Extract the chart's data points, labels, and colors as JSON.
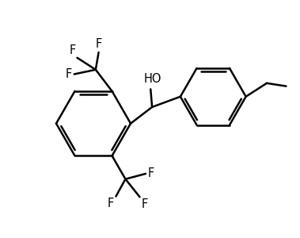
{
  "bg_color": "#ffffff",
  "line_color": "#000000",
  "line_width": 1.8,
  "font_size": 10.5,
  "fig_width": 3.79,
  "fig_height": 3.0,
  "dpi": 100,
  "xlim": [
    0,
    10
  ],
  "ylim": [
    0,
    7.9
  ]
}
